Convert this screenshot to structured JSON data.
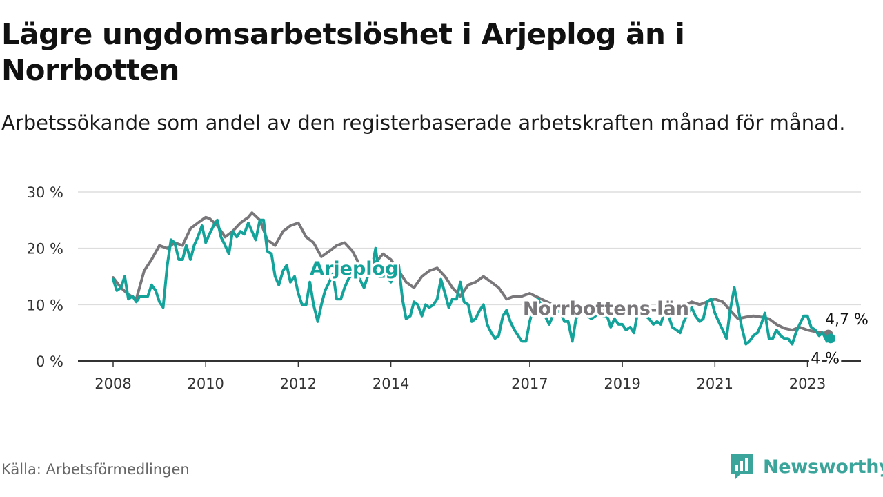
{
  "title": "Lägre ungdomsarbetslöshet i Arjeplog än i Norrbotten",
  "subtitle": "Arbetssökande som andel av den registerbaserade arbetskraften månad för månad.",
  "source": "Källa: Arbetsförmedlingen",
  "brand": {
    "name": "Newsworthy",
    "icon": "bar-chart-icon",
    "color": "#3ba59b"
  },
  "colors": {
    "arjeplog": "#13a39a",
    "norrbotten": "#7a777b",
    "grid": "#dddddd",
    "axis": "#333333"
  },
  "chart_data": {
    "type": "line",
    "title": "Lägre ungdomsarbetslöshet i Arjeplog än i Norrbotten",
    "xlabel": "",
    "ylabel": "",
    "ylim": [
      0,
      30
    ],
    "xlim": [
      2008,
      2023.6
    ],
    "yticks": [
      0,
      10,
      20,
      30
    ],
    "ytick_labels": [
      "0 %",
      "10 %",
      "20 %",
      "30 %"
    ],
    "xticks": [
      2008,
      2010,
      2012,
      2014,
      2017,
      2019,
      2021,
      2023
    ],
    "xtick_labels": [
      "2008",
      "2010",
      "2012",
      "2014",
      "2017",
      "2019",
      "2021",
      "2023"
    ],
    "grid": true,
    "series": [
      {
        "name": "Norrbottens län",
        "label": "Norrbottens län",
        "end_label": "4,7 %",
        "x": [
          2008.0,
          2008.17,
          2008.33,
          2008.5,
          2008.67,
          2008.83,
          2009.0,
          2009.17,
          2009.33,
          2009.5,
          2009.67,
          2009.83,
          2010.0,
          2010.08,
          2010.25,
          2010.42,
          2010.58,
          2010.75,
          2010.92,
          2011.0,
          2011.17,
          2011.33,
          2011.5,
          2011.67,
          2011.83,
          2012.0,
          2012.17,
          2012.33,
          2012.5,
          2012.67,
          2012.83,
          2013.0,
          2013.17,
          2013.33,
          2013.5,
          2013.67,
          2013.83,
          2014.0,
          2014.17,
          2014.33,
          2014.5,
          2014.67,
          2014.83,
          2015.0,
          2015.17,
          2015.33,
          2015.5,
          2015.67,
          2015.83,
          2016.0,
          2016.17,
          2016.33,
          2016.5,
          2016.67,
          2016.83,
          2017.0,
          2017.25,
          2017.5,
          2017.75,
          2018.0,
          2018.25,
          2018.5,
          2018.75,
          2019.0,
          2019.25,
          2019.5,
          2019.75,
          2020.0,
          2020.17,
          2020.33,
          2020.5,
          2020.67,
          2020.83,
          2021.0,
          2021.17,
          2021.33,
          2021.5,
          2021.67,
          2021.83,
          2022.0,
          2022.17,
          2022.33,
          2022.5,
          2022.67,
          2022.83,
          2023.0,
          2023.17,
          2023.33,
          2023.45
        ],
        "values": [
          14.8,
          13.0,
          11.8,
          11.0,
          16.0,
          18.0,
          20.5,
          20.0,
          21.0,
          20.5,
          23.5,
          24.5,
          25.5,
          25.3,
          24.0,
          22.0,
          23.0,
          24.5,
          25.5,
          26.3,
          25.0,
          21.5,
          20.5,
          23.0,
          24.0,
          24.5,
          22.0,
          21.0,
          18.5,
          19.5,
          20.5,
          21.0,
          19.5,
          17.0,
          15.5,
          17.5,
          19.0,
          18.0,
          16.0,
          14.0,
          13.0,
          15.0,
          16.0,
          16.5,
          15.0,
          13.0,
          11.5,
          13.5,
          14.0,
          15.0,
          14.0,
          13.0,
          11.0,
          11.5,
          11.5,
          12.0,
          11.0,
          10.0,
          9.5,
          9.0,
          9.5,
          9.0,
          9.0,
          9.0,
          9.5,
          9.0,
          9.0,
          9.5,
          10.0,
          9.8,
          10.5,
          10.0,
          10.5,
          11.0,
          10.5,
          9.0,
          7.5,
          7.8,
          8.0,
          7.8,
          7.5,
          6.5,
          5.8,
          5.5,
          6.0,
          5.5,
          5.2,
          5.0,
          4.7
        ]
      },
      {
        "name": "Arjeplog",
        "label": "Arjeplog",
        "end_label": "4 %",
        "x": [
          2008.0,
          2008.08,
          2008.17,
          2008.25,
          2008.33,
          2008.42,
          2008.5,
          2008.58,
          2008.67,
          2008.75,
          2008.83,
          2008.92,
          2009.0,
          2009.08,
          2009.17,
          2009.25,
          2009.33,
          2009.42,
          2009.5,
          2009.58,
          2009.67,
          2009.75,
          2009.83,
          2009.92,
          2010.0,
          2010.08,
          2010.17,
          2010.25,
          2010.33,
          2010.42,
          2010.5,
          2010.58,
          2010.67,
          2010.75,
          2010.83,
          2010.92,
          2011.0,
          2011.08,
          2011.17,
          2011.25,
          2011.33,
          2011.42,
          2011.5,
          2011.58,
          2011.67,
          2011.75,
          2011.83,
          2011.92,
          2012.0,
          2012.08,
          2012.17,
          2012.25,
          2012.33,
          2012.42,
          2012.5,
          2012.58,
          2012.67,
          2012.75,
          2012.83,
          2012.92,
          2013.0,
          2013.08,
          2013.17,
          2013.25,
          2013.33,
          2013.42,
          2013.5,
          2013.58,
          2013.67,
          2013.75,
          2013.83,
          2013.92,
          2014.0,
          2014.08,
          2014.17,
          2014.25,
          2014.33,
          2014.42,
          2014.5,
          2014.58,
          2014.67,
          2014.75,
          2014.83,
          2014.92,
          2015.0,
          2015.08,
          2015.17,
          2015.25,
          2015.33,
          2015.42,
          2015.5,
          2015.58,
          2015.67,
          2015.75,
          2015.83,
          2015.92,
          2016.0,
          2016.08,
          2016.17,
          2016.25,
          2016.33,
          2016.42,
          2016.5,
          2016.58,
          2016.67,
          2016.75,
          2016.83,
          2016.92,
          2017.0,
          2017.08,
          2017.17,
          2017.25,
          2017.33,
          2017.42,
          2017.5,
          2017.58,
          2017.67,
          2017.75,
          2017.83,
          2017.92,
          2018.0,
          2018.08,
          2018.17,
          2018.25,
          2018.33,
          2018.42,
          2018.5,
          2018.58,
          2018.67,
          2018.75,
          2018.83,
          2018.92,
          2019.0,
          2019.08,
          2019.17,
          2019.25,
          2019.33,
          2019.42,
          2019.5,
          2019.58,
          2019.67,
          2019.75,
          2019.83,
          2019.92,
          2020.0,
          2020.08,
          2020.17,
          2020.25,
          2020.33,
          2020.42,
          2020.5,
          2020.58,
          2020.67,
          2020.75,
          2020.83,
          2020.92,
          2021.0,
          2021.08,
          2021.17,
          2021.25,
          2021.33,
          2021.42,
          2021.5,
          2021.58,
          2021.67,
          2021.75,
          2021.83,
          2021.92,
          2022.0,
          2022.08,
          2022.17,
          2022.25,
          2022.33,
          2022.42,
          2022.5,
          2022.58,
          2022.67,
          2022.75,
          2022.83,
          2022.92,
          2023.0,
          2023.08,
          2023.17,
          2023.25,
          2023.33,
          2023.42,
          2023.5
        ],
        "values": [
          14.5,
          12.5,
          13.0,
          15.0,
          11.0,
          11.5,
          10.5,
          11.5,
          11.5,
          11.5,
          13.5,
          12.5,
          10.5,
          9.5,
          17.0,
          21.5,
          21.0,
          18.0,
          18.0,
          20.5,
          18.0,
          20.5,
          22.0,
          24.0,
          21.0,
          22.5,
          24.0,
          25.0,
          22.0,
          20.5,
          19.0,
          23.0,
          22.0,
          23.0,
          22.5,
          24.5,
          23.0,
          21.5,
          25.0,
          25.0,
          19.5,
          19.0,
          15.0,
          13.5,
          16.0,
          17.0,
          14.0,
          15.0,
          12.0,
          10.0,
          10.0,
          14.0,
          10.0,
          7.0,
          10.0,
          12.5,
          14.0,
          15.5,
          11.0,
          11.0,
          13.0,
          14.5,
          15.5,
          15.0,
          14.5,
          13.0,
          15.0,
          16.0,
          20.0,
          15.0,
          15.0,
          15.0,
          14.0,
          16.0,
          17.0,
          11.0,
          7.5,
          8.0,
          10.5,
          10.0,
          8.0,
          10.0,
          9.5,
          10.0,
          11.0,
          14.5,
          12.0,
          9.5,
          11.0,
          11.0,
          14.0,
          10.5,
          10.0,
          7.0,
          7.5,
          9.0,
          10.0,
          6.5,
          5.0,
          4.0,
          4.5,
          8.0,
          9.0,
          7.0,
          5.5,
          4.5,
          3.5,
          3.5,
          7.0,
          9.5,
          11.0,
          10.0,
          8.0,
          6.5,
          8.0,
          9.0,
          8.5,
          7.0,
          7.0,
          3.5,
          7.5,
          8.5,
          9.5,
          8.0,
          7.5,
          8.0,
          9.5,
          8.0,
          8.0,
          6.0,
          7.5,
          6.5,
          6.5,
          5.5,
          6.0,
          5.0,
          8.5,
          9.5,
          8.0,
          7.5,
          6.5,
          7.0,
          6.5,
          9.0,
          8.0,
          6.0,
          5.5,
          5.0,
          7.0,
          8.5,
          9.5,
          8.0,
          7.0,
          7.5,
          10.5,
          11.0,
          8.5,
          7.0,
          5.5,
          4.0,
          9.0,
          13.0,
          9.5,
          6.0,
          3.0,
          3.5,
          4.5,
          5.0,
          6.5,
          8.5,
          4.0,
          4.0,
          5.5,
          4.5,
          4.0,
          4.0,
          3.0,
          5.0,
          6.5,
          8.0,
          8.0,
          6.0,
          5.5,
          4.5,
          5.0,
          3.5,
          4.0
        ]
      }
    ],
    "annotations": [
      "Arjeplog",
      "Norrbottens län",
      "4,7 %",
      "4 %"
    ]
  }
}
